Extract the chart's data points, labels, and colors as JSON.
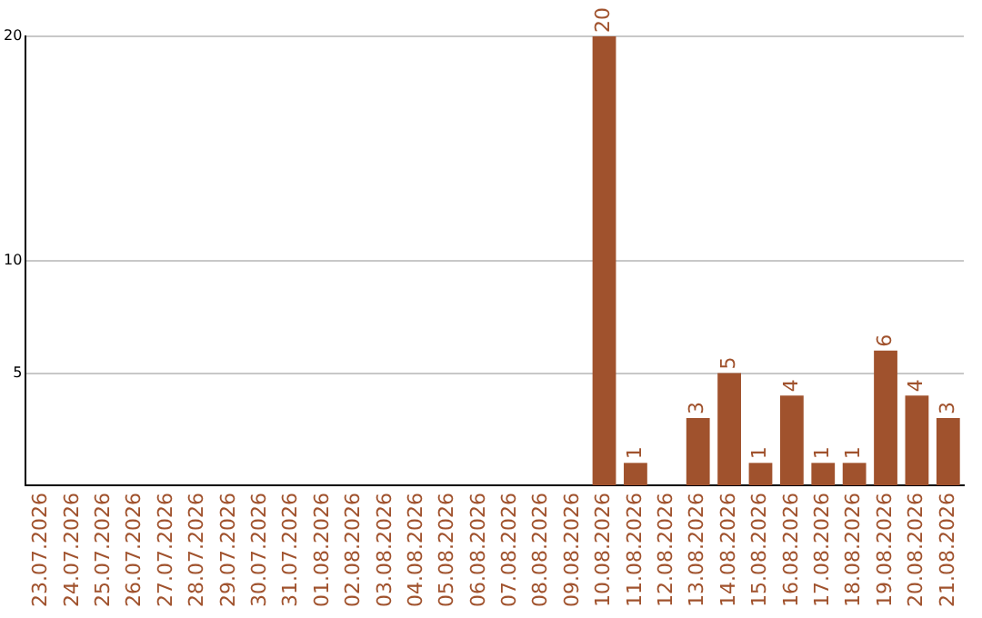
{
  "chart_data": {
    "type": "bar",
    "categories": [
      "23.07.2026",
      "24.07.2026",
      "25.07.2026",
      "26.07.2026",
      "27.07.2026",
      "28.07.2026",
      "29.07.2026",
      "30.07.2026",
      "31.07.2026",
      "01.08.2026",
      "02.08.2026",
      "03.08.2026",
      "04.08.2026",
      "05.08.2026",
      "06.08.2026",
      "07.08.2026",
      "08.08.2026",
      "09.08.2026",
      "10.08.2026",
      "11.08.2026",
      "12.08.2026",
      "13.08.2026",
      "14.08.2026",
      "15.08.2026",
      "16.08.2026",
      "17.08.2026",
      "18.08.2026",
      "19.08.2026",
      "20.08.2026",
      "21.08.2026"
    ],
    "values": [
      0,
      0,
      0,
      0,
      0,
      0,
      0,
      0,
      0,
      0,
      0,
      0,
      0,
      0,
      0,
      0,
      0,
      0,
      20,
      1,
      0,
      3,
      5,
      1,
      4,
      1,
      1,
      6,
      4,
      3
    ],
    "value_labels": [
      null,
      null,
      null,
      null,
      null,
      null,
      null,
      null,
      null,
      null,
      null,
      null,
      null,
      null,
      null,
      null,
      null,
      null,
      "20",
      "1",
      null,
      "3",
      "5",
      "1",
      "4",
      "1",
      "1",
      "6",
      "4",
      "3"
    ],
    "color": "#a0522d",
    "ylim": [
      0,
      20
    ],
    "yticks": [
      5,
      10,
      20
    ],
    "grid": "y",
    "legend": false
  }
}
